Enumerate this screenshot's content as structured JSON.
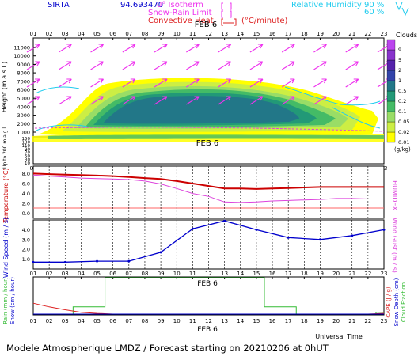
{
  "header": {
    "site": "SIRTA",
    "coords": "94.693470",
    "legend_isotherm": "0° Isotherm",
    "legend_snow_rain": "Snow-Rain Limit",
    "legend_convective": "Convective Heat.",
    "legend_unit": "(°C/minute)",
    "legend_rh": "Relative Humidity",
    "rh_90": "90 %",
    "rh_60": "60 %"
  },
  "footer": {
    "title": "Modele Atmospherique LMDZ / Forecast starting on 20210206 at 0hUT",
    "universal_time": "Universal Time"
  },
  "colors": {
    "temperature": "#cc0000",
    "humidex": "#dd44dd",
    "wind": "#0000cc",
    "wind_arrows": "#ee33ee",
    "rain": "#33bb33",
    "snow": "#0000cc",
    "cape": "#dd2222",
    "rh": "#22ccee"
  },
  "chart_data": [
    {
      "type": "heatmap",
      "panel": "clouds",
      "date_label": "FEB 6",
      "ylabel": "Height (m a.s.l.)",
      "ylabel_low": "Up to 200 m a.g.l.",
      "x_ticks": [
        "01",
        "02",
        "03",
        "04",
        "05",
        "06",
        "07",
        "08",
        "09",
        "10",
        "11",
        "12",
        "13",
        "14",
        "15",
        "16",
        "17",
        "18",
        "19",
        "20",
        "21",
        "22",
        "23"
      ],
      "y_ticks_upper": [
        1000,
        2000,
        3000,
        4000,
        5000,
        6000,
        7000,
        8000,
        9000,
        10000,
        11000
      ],
      "y_ticks_lower": [
        10,
        20,
        30,
        40,
        50,
        60,
        70,
        80,
        90,
        100,
        110,
        120,
        130,
        140,
        150
      ],
      "legend_title": "Clouds",
      "legend_unit": "(g/kg)",
      "legend_levels": [
        "0.01",
        "0.02",
        "0.05",
        "0.1",
        "0.2",
        "0.5",
        "1",
        "2",
        "5",
        "9"
      ],
      "legend_colors": [
        "#ffff00",
        "#ccee44",
        "#99dd66",
        "#44bb66",
        "#229977",
        "#227788",
        "#3344aa",
        "#5522aa",
        "#8833cc",
        "#bb44ee"
      ]
    },
    {
      "type": "line",
      "panel": "temperature",
      "ylabel": "Temperature (°C)",
      "ylabel_right": "HUMIDEX",
      "x": [
        1,
        2,
        3,
        4,
        5,
        6,
        7,
        8,
        9,
        10,
        11,
        12,
        13,
        14,
        15,
        16,
        17,
        18,
        19,
        20,
        21,
        22,
        23
      ],
      "y_ticks": [
        0.0,
        2.0,
        4.0,
        6.0,
        8.0
      ],
      "ylim": [
        -1,
        9.5
      ],
      "series": [
        {
          "name": "Temperature",
          "values": [
            8.0,
            7.9,
            7.8,
            7.7,
            7.6,
            7.5,
            7.3,
            7.1,
            6.9,
            6.5,
            6.0,
            5.5,
            5.0,
            5.0,
            4.9,
            5.0,
            5.1,
            5.2,
            5.3,
            5.3,
            5.3,
            5.3,
            5.3
          ]
        },
        {
          "name": "Humidex",
          "values": [
            7.7,
            7.5,
            7.3,
            7.1,
            7.0,
            6.9,
            6.8,
            6.5,
            5.9,
            5.0,
            4.0,
            3.4,
            2.3,
            2.2,
            2.3,
            2.5,
            2.6,
            2.7,
            2.8,
            3.0,
            3.0,
            2.9,
            2.9
          ]
        }
      ]
    },
    {
      "type": "line",
      "panel": "wind",
      "ylabel": "Wind Speed (m / s)",
      "ylabel_right": "Wind Gust (m / s)",
      "x": [
        1,
        3,
        5,
        7,
        9,
        11,
        13,
        15,
        17,
        19,
        21,
        23
      ],
      "y_ticks": [
        1.0,
        2.0,
        3.0,
        4.0
      ],
      "ylim": [
        0,
        5
      ],
      "series": [
        {
          "name": "Wind Speed",
          "values": [
            0.7,
            0.7,
            0.8,
            0.8,
            1.7,
            4.1,
            4.9,
            4.0,
            3.2,
            3.0,
            3.4,
            4.0
          ]
        }
      ]
    },
    {
      "type": "line",
      "panel": "precipitation",
      "date_label": "FEB 6",
      "ylabel_left": "Rain (mm / hour)",
      "ylabel_left2": "Snow (cm / hour)",
      "ylabel_right": "CAPE (J / g)",
      "ylabel_right2": "Snow Depth (cm)",
      "ylabel_right3": "Cloud Fraction",
      "x_ticks": [
        "01",
        "02",
        "03",
        "04",
        "05",
        "06",
        "07",
        "08",
        "09",
        "10",
        "11",
        "12",
        "13",
        "14",
        "15",
        "16",
        "17",
        "18",
        "19",
        "20",
        "21",
        "22",
        "23"
      ],
      "series": [
        {
          "name": "CAPE",
          "values": [
            0.3,
            0.2,
            0.12,
            0.05,
            0.02,
            0.0,
            0.0,
            0.0,
            0.0,
            0.0,
            0.0,
            0.0,
            0.0,
            0.0,
            0.0,
            0.0,
            0.0,
            0.0,
            0.0,
            0.0,
            0.0,
            0.0,
            0.02
          ]
        },
        {
          "name": "Cloud Fraction",
          "values": [
            0.0,
            0.0,
            0.0,
            0.2,
            0.2,
            1.0,
            1.0,
            1.0,
            1.0,
            1.0,
            1.0,
            1.0,
            1.0,
            1.0,
            1.0,
            0.2,
            0.2,
            0.0,
            0.0,
            0.0,
            0.0,
            0.0,
            0.05
          ]
        }
      ]
    }
  ]
}
